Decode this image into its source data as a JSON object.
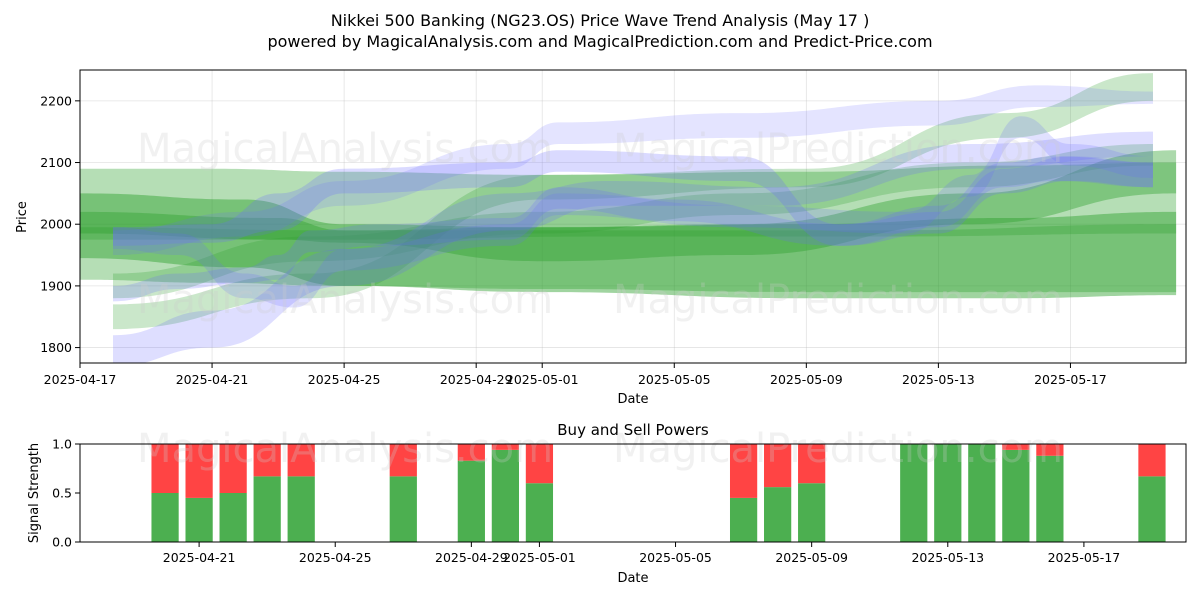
{
  "header": {
    "title": "Nikkei 500 Banking (NG23.OS) Price Wave Trend Analysis (May 17 )",
    "subtitle": "powered by MagicalAnalysis.com and MagicalPrediction.com and Predict-Price.com"
  },
  "watermarks": [
    "MagicalAnalysis.com",
    "MagicalPrediction.com"
  ],
  "colors": {
    "green_band": "#2ca02c",
    "blue_band": "#6a6aff",
    "buy": "#4caf50",
    "sell": "#ff4444"
  },
  "chart_data": [
    {
      "type": "area",
      "title": "",
      "xlabel": "Date",
      "ylabel": "Price",
      "xlim": [
        0,
        33.5
      ],
      "ylim": [
        1775,
        2250
      ],
      "x_origin": "2025-04-17",
      "xticks": [
        {
          "day": 0,
          "label": "2025-04-17"
        },
        {
          "day": 4,
          "label": "2025-04-21"
        },
        {
          "day": 8,
          "label": "2025-04-25"
        },
        {
          "day": 12,
          "label": "2025-04-29"
        },
        {
          "day": 14,
          "label": "2025-05-01"
        },
        {
          "day": 18,
          "label": "2025-05-05"
        },
        {
          "day": 22,
          "label": "2025-05-09"
        },
        {
          "day": 26,
          "label": "2025-05-13"
        },
        {
          "day": 30,
          "label": "2025-05-17"
        }
      ],
      "yticks": [
        1800,
        1900,
        2000,
        2100,
        2200
      ],
      "grid": true,
      "bands": [
        {
          "color": "green",
          "opacity": 0.35,
          "x": [
            0,
            4,
            8,
            14,
            22,
            28,
            33.2
          ],
          "upper": [
            2090,
            2090,
            2085,
            2080,
            2085,
            2095,
            2100
          ],
          "lower": [
            1910,
            1905,
            1900,
            1895,
            1890,
            1890,
            1890
          ]
        },
        {
          "color": "green",
          "opacity": 0.45,
          "x": [
            0,
            5,
            8,
            14,
            22,
            28,
            33.2
          ],
          "upper": [
            2050,
            2040,
            2000,
            1995,
            2000,
            2010,
            2020
          ],
          "lower": [
            1945,
            1930,
            1900,
            1890,
            1880,
            1880,
            1885
          ]
        },
        {
          "color": "green",
          "opacity": 0.4,
          "x": [
            0,
            6,
            8,
            14,
            20,
            27,
            33.2
          ],
          "upper": [
            2020,
            2010,
            1990,
            1995,
            2000,
            2050,
            2120
          ],
          "lower": [
            1985,
            1975,
            1970,
            1940,
            1950,
            2000,
            2050
          ]
        },
        {
          "color": "green",
          "opacity": 0.3,
          "x": [
            0,
            8,
            16,
            24,
            33.2
          ],
          "upper": [
            1995,
            1990,
            1990,
            1990,
            2000
          ],
          "lower": [
            1975,
            1975,
            1980,
            1980,
            1985
          ]
        },
        {
          "color": "green",
          "opacity": 0.25,
          "x": [
            1,
            7,
            14,
            22,
            28,
            32.5
          ],
          "upper": [
            1870,
            1920,
            2080,
            2090,
            2180,
            2245
          ],
          "lower": [
            1830,
            1880,
            2040,
            2060,
            2140,
            2200
          ]
        },
        {
          "color": "green",
          "opacity": 0.25,
          "x": [
            1,
            7,
            14,
            20,
            27,
            32.5
          ],
          "upper": [
            1920,
            1980,
            2020,
            2050,
            2100,
            2130
          ],
          "lower": [
            1880,
            1940,
            1985,
            2015,
            2060,
            2095
          ]
        },
        {
          "color": "blue",
          "opacity": 0.22,
          "x": [
            1,
            4,
            8,
            13,
            16,
            21,
            27,
            32.5
          ],
          "upper": [
            1820,
            1860,
            1960,
            2050,
            2070,
            2060,
            2130,
            2150
          ],
          "lower": [
            1770,
            1800,
            1900,
            1990,
            2030,
            2030,
            2090,
            2110
          ]
        },
        {
          "color": "blue",
          "opacity": 0.22,
          "x": [
            1,
            5,
            8,
            13,
            14.5,
            20,
            26,
            29,
            32.5
          ],
          "upper": [
            1990,
            2020,
            2070,
            2130,
            2165,
            2180,
            2200,
            2225,
            2215
          ]
        },
        {
          "color": "blue",
          "opacity": 0.18,
          "x": [
            1,
            5,
            8,
            13,
            14.5,
            20,
            26,
            29,
            32.5
          ],
          "upper": [
            1990,
            2020,
            2070,
            2130,
            2165,
            2180,
            2200,
            2225,
            2215
          ],
          "lower": [
            1950,
            1980,
            2030,
            2090,
            2130,
            2140,
            2160,
            2190,
            2195
          ]
        },
        {
          "color": "blue",
          "opacity": 0.25,
          "x": [
            1,
            4,
            6,
            8,
            13,
            14.5,
            20,
            23,
            26,
            28,
            30,
            32.5
          ],
          "upper": [
            1995,
            2000,
            2050,
            2090,
            2100,
            2120,
            2110,
            2000,
            2020,
            2090,
            2110,
            2100
          ],
          "lower": [
            1965,
            1970,
            1990,
            2050,
            2060,
            2085,
            2070,
            1965,
            1985,
            2050,
            2070,
            2060
          ]
        },
        {
          "color": "blue",
          "opacity": 0.22,
          "x": [
            1,
            3,
            5,
            6,
            7,
            9,
            13,
            14.5,
            18,
            23,
            26,
            28,
            29.5,
            32.5
          ],
          "upper": [
            1900,
            1920,
            1930,
            1950,
            1990,
            2000,
            2010,
            2060,
            2040,
            2000,
            2030,
            2100,
            2110,
            2100
          ],
          "lower": [
            1875,
            1895,
            1905,
            1910,
            1955,
            1965,
            1975,
            2025,
            2005,
            1965,
            1995,
            2060,
            2070,
            2060
          ]
        },
        {
          "color": "blue",
          "opacity": 0.2,
          "x": [
            1,
            3,
            5,
            6.5,
            8,
            13,
            14.5,
            20,
            25,
            27,
            28.5,
            30,
            32.5
          ],
          "upper": [
            1995,
            1985,
            1920,
            1900,
            1960,
            2000,
            2050,
            2030,
            2020,
            2080,
            2175,
            2130,
            2110
          ],
          "lower": [
            1960,
            1950,
            1880,
            1865,
            1925,
            1965,
            2015,
            1995,
            1985,
            2045,
            2140,
            2095,
            2075
          ]
        }
      ]
    },
    {
      "type": "bar",
      "title": "Buy and Sell Powers",
      "xlabel": "Date",
      "ylabel": "Signal Strength",
      "xlim": [
        -1.5,
        31
      ],
      "ylim": [
        0,
        1.0
      ],
      "x_origin": "2025-04-19",
      "xticks": [
        {
          "day": 2,
          "label": "2025-04-21"
        },
        {
          "day": 6,
          "label": "2025-04-25"
        },
        {
          "day": 10,
          "label": "2025-04-29"
        },
        {
          "day": 12,
          "label": "2025-05-01"
        },
        {
          "day": 16,
          "label": "2025-05-05"
        },
        {
          "day": 20,
          "label": "2025-05-09"
        },
        {
          "day": 24,
          "label": "2025-05-13"
        },
        {
          "day": 28,
          "label": "2025-05-17"
        }
      ],
      "yticks": [
        0.0,
        0.5,
        1.0
      ],
      "grid": false,
      "series": [
        {
          "name": "Buy",
          "color": "green"
        },
        {
          "name": "Sell",
          "color": "red"
        }
      ],
      "bars": [
        {
          "day": 1,
          "buy": 0.5
        },
        {
          "day": 2,
          "buy": 0.45
        },
        {
          "day": 3,
          "buy": 0.5
        },
        {
          "day": 4,
          "buy": 0.67
        },
        {
          "day": 5,
          "buy": 0.67
        },
        {
          "day": 8,
          "buy": 0.67
        },
        {
          "day": 10,
          "buy": 0.83
        },
        {
          "day": 11,
          "buy": 0.94
        },
        {
          "day": 12,
          "buy": 0.6
        },
        {
          "day": 18,
          "buy": 0.45
        },
        {
          "day": 19,
          "buy": 0.56
        },
        {
          "day": 20,
          "buy": 0.6
        },
        {
          "day": 23,
          "buy": 1.0
        },
        {
          "day": 24,
          "buy": 1.0
        },
        {
          "day": 25,
          "buy": 1.0
        },
        {
          "day": 26,
          "buy": 0.94
        },
        {
          "day": 27,
          "buy": 0.88
        },
        {
          "day": 30,
          "buy": 0.67
        }
      ]
    }
  ]
}
